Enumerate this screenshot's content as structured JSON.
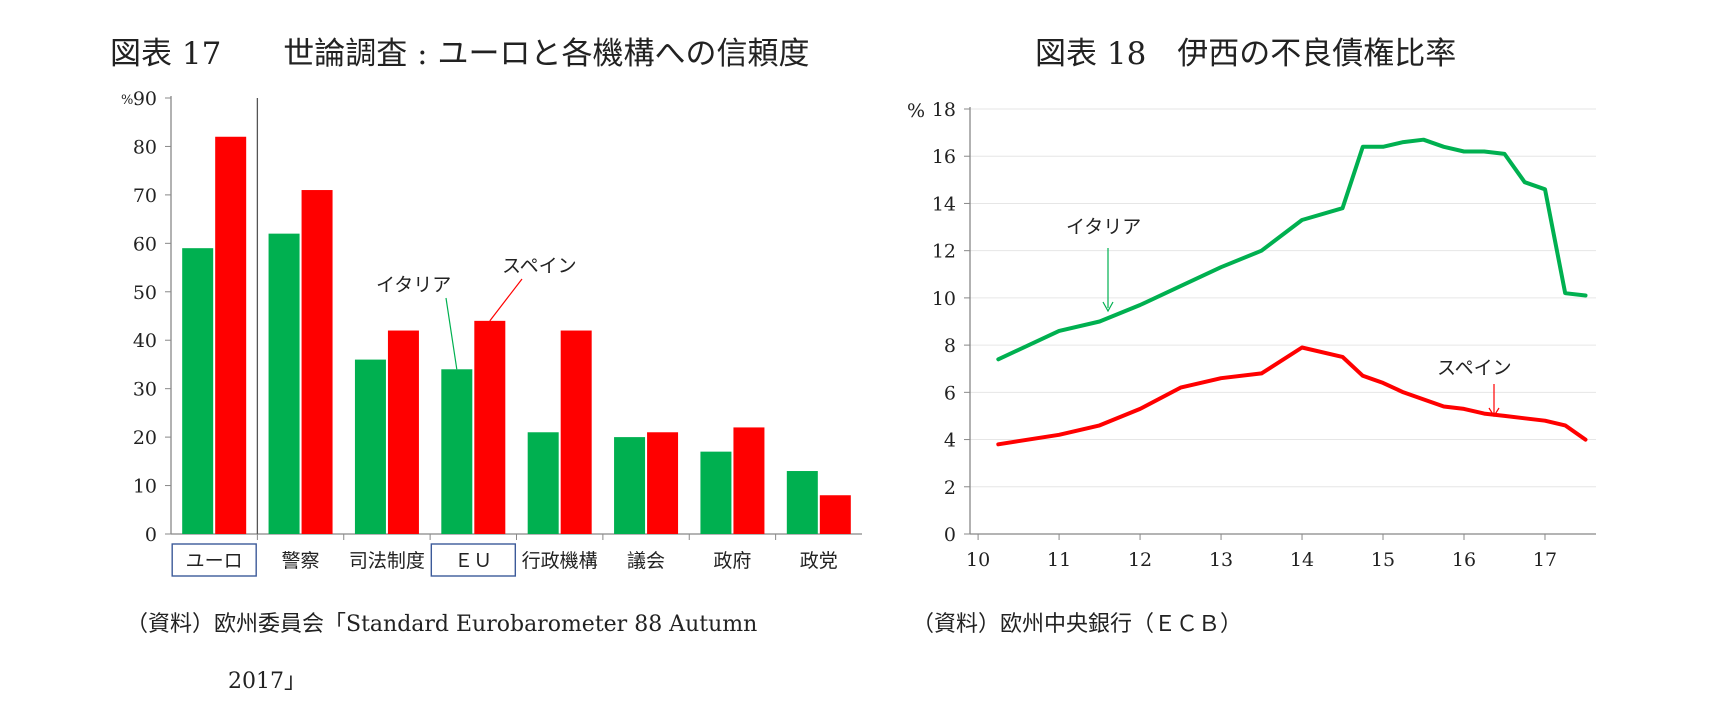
{
  "figures": [
    {
      "title": "図表 17　　世論調査 : ユーロと各機構への信頼度",
      "source_line1": "（資料）欧州委員会「Standard Eurobarometer 88 Autumn",
      "source_line2": "2017」"
    },
    {
      "title": "図表 18　伊西の不良債権比率",
      "source_line1": "（資料）欧州中央銀行（ＥＣＢ）"
    }
  ],
  "colors": {
    "italy": "#00b050",
    "spain": "#ff0000",
    "axis": "#888888",
    "grid": "#e6e6e6",
    "label_box": "#3c5a99"
  },
  "chart_data": [
    {
      "type": "bar",
      "unit_label": "%",
      "categories": [
        "ユーロ",
        "警察",
        "司法制度",
        "ＥＵ",
        "行政機構",
        "議会",
        "政府",
        "政党"
      ],
      "boxed_categories": [
        "ユーロ",
        "ＥＵ"
      ],
      "series": [
        {
          "name": "イタリア",
          "values": [
            59,
            62,
            36,
            34,
            21,
            20,
            17,
            13
          ]
        },
        {
          "name": "スペイン",
          "values": [
            82,
            71,
            42,
            44,
            42,
            21,
            22,
            8
          ]
        }
      ],
      "ylim": [
        0,
        90
      ],
      "yticks": [
        0,
        10,
        20,
        30,
        40,
        50,
        60,
        70,
        80,
        90
      ],
      "separator_after_category": "ユーロ",
      "grid": false
    },
    {
      "type": "line",
      "unit_label": "%",
      "xlim": [
        9.9,
        17.63
      ],
      "ylim": [
        0,
        18
      ],
      "xticks": [
        10,
        11,
        12,
        13,
        14,
        15,
        16,
        17
      ],
      "yticks": [
        0,
        2,
        4,
        6,
        8,
        10,
        12,
        14,
        16,
        18
      ],
      "grid": true,
      "series": [
        {
          "name": "イタリア",
          "points": [
            [
              10.25,
              7.4
            ],
            [
              11.0,
              8.6
            ],
            [
              11.5,
              9.0
            ],
            [
              12.0,
              9.7
            ],
            [
              12.5,
              10.5
            ],
            [
              13.0,
              11.3
            ],
            [
              13.5,
              12.0
            ],
            [
              14.0,
              13.3
            ],
            [
              14.5,
              13.8
            ],
            [
              14.75,
              16.4
            ],
            [
              15.0,
              16.4
            ],
            [
              15.25,
              16.6
            ],
            [
              15.5,
              16.7
            ],
            [
              15.75,
              16.4
            ],
            [
              16.0,
              16.2
            ],
            [
              16.25,
              16.2
            ],
            [
              16.5,
              16.1
            ],
            [
              16.75,
              14.9
            ],
            [
              17.0,
              14.6
            ],
            [
              17.25,
              10.2
            ],
            [
              17.5,
              10.1
            ]
          ]
        },
        {
          "name": "スペイン",
          "points": [
            [
              10.25,
              3.8
            ],
            [
              11.0,
              4.2
            ],
            [
              11.5,
              4.6
            ],
            [
              12.0,
              5.3
            ],
            [
              12.5,
              6.2
            ],
            [
              13.0,
              6.6
            ],
            [
              13.5,
              6.8
            ],
            [
              14.0,
              7.9
            ],
            [
              14.5,
              7.5
            ],
            [
              14.75,
              6.7
            ],
            [
              15.0,
              6.4
            ],
            [
              15.25,
              6.0
            ],
            [
              15.5,
              5.7
            ],
            [
              15.75,
              5.4
            ],
            [
              16.0,
              5.3
            ],
            [
              16.25,
              5.1
            ],
            [
              16.5,
              5.0
            ],
            [
              16.75,
              4.9
            ],
            [
              17.0,
              4.8
            ],
            [
              17.25,
              4.6
            ],
            [
              17.5,
              4.0
            ]
          ]
        }
      ]
    }
  ]
}
